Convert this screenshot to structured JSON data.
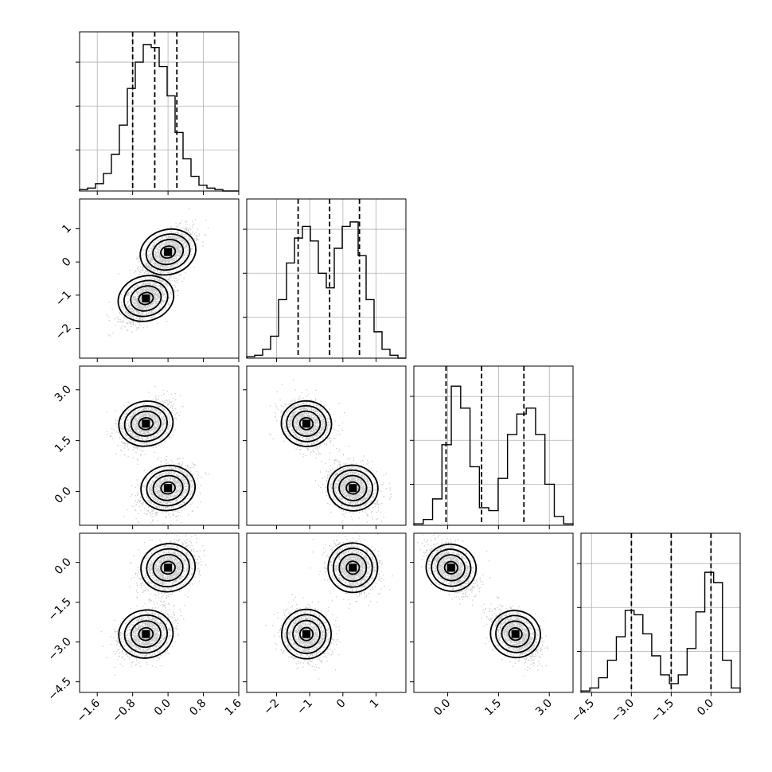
{
  "chart_data": {
    "type": "corner",
    "parameters": [
      {
        "index": 0,
        "range": [
          -2.0,
          1.6
        ],
        "ticks": [
          -1.6,
          -0.8,
          0.0,
          0.8,
          1.6
        ],
        "tick_labels": [
          "−1.6",
          "−0.8",
          "0.0",
          "0.8",
          "1.6"
        ],
        "quantiles": [
          -0.8,
          -0.3,
          0.2
        ]
      },
      {
        "index": 1,
        "range": [
          -2.9,
          1.9
        ],
        "ticks": [
          -2,
          -1,
          0,
          1
        ],
        "tick_labels": [
          "−2",
          "−1",
          "0",
          "1"
        ],
        "quantiles": [
          -1.35,
          -0.4,
          0.5
        ]
      },
      {
        "index": 2,
        "range": [
          -1.0,
          3.7
        ],
        "ticks": [
          0.0,
          1.5,
          3.0
        ],
        "tick_labels": [
          "0.0",
          "1.5",
          "3.0"
        ],
        "y_ticks": [
          0.0,
          1.5,
          3.0
        ],
        "y_tick_labels": [
          "0.0",
          "1.5",
          "3.0"
        ],
        "quantiles": [
          -0.05,
          1.0,
          2.25
        ]
      },
      {
        "index": 3,
        "range": [
          -4.9,
          1.1
        ],
        "ticks": [
          -4.5,
          -3.0,
          -1.5,
          0.0
        ],
        "tick_labels": [
          "−4.5",
          "−3.0",
          "−1.5",
          "0.0"
        ],
        "y_ticks": [
          -4.5,
          -3.0,
          -1.5,
          0.0
        ],
        "y_tick_labels": [
          "−4.5",
          "−3.0",
          "−1.5",
          "0.0"
        ],
        "quantiles": [
          -3.0,
          -1.5,
          0.0
        ]
      }
    ],
    "histograms": [
      {
        "param": 0,
        "counts": [
          0.01,
          0.02,
          0.05,
          0.12,
          0.25,
          0.45,
          0.7,
          0.88,
          1.0,
          0.98,
          0.85,
          0.65,
          0.4,
          0.22,
          0.1,
          0.04,
          0.02,
          0.01,
          0.0,
          0.0
        ]
      },
      {
        "param": 1,
        "counts": [
          0.01,
          0.02,
          0.06,
          0.15,
          0.4,
          0.65,
          0.82,
          0.9,
          0.8,
          0.58,
          0.48,
          0.75,
          0.9,
          0.93,
          0.7,
          0.4,
          0.18,
          0.06,
          0.02,
          0.0
        ]
      },
      {
        "param": 2,
        "counts": [
          0.01,
          0.04,
          0.18,
          0.55,
          0.95,
          0.8,
          0.4,
          0.12,
          0.1,
          0.32,
          0.62,
          0.76,
          0.8,
          0.62,
          0.28,
          0.06,
          0.01
        ]
      },
      {
        "param": 3,
        "counts": [
          0.01,
          0.03,
          0.1,
          0.22,
          0.38,
          0.56,
          0.53,
          0.4,
          0.25,
          0.12,
          0.06,
          0.12,
          0.3,
          0.55,
          0.82,
          0.75,
          0.22,
          0.03
        ]
      }
    ],
    "clusters": [
      {
        "weight": 0.5,
        "mean": [
          0.0,
          0.3,
          0.1,
          -0.2
        ],
        "std": [
          0.28,
          0.35,
          0.33,
          0.45
        ]
      },
      {
        "weight": 0.5,
        "mean": [
          -0.5,
          -1.1,
          2.0,
          -2.7
        ],
        "std": [
          0.28,
          0.35,
          0.33,
          0.45
        ]
      }
    ],
    "contour_levels": [
      0.12,
      0.34,
      0.6,
      0.85
    ],
    "grid": true
  }
}
